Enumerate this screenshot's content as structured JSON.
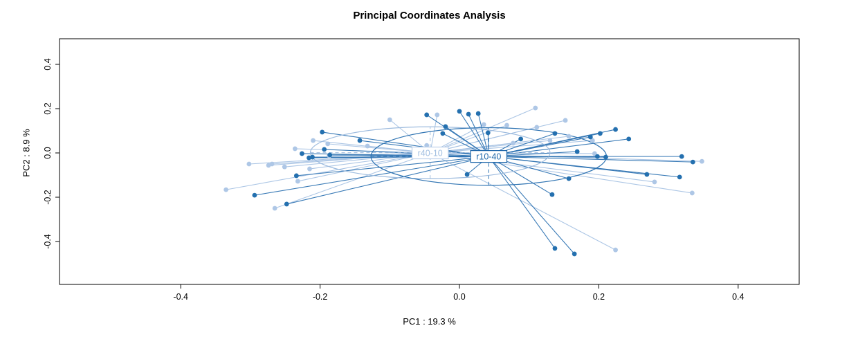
{
  "chart_data": {
    "type": "scatter",
    "title": "Principal Coordinates Analysis",
    "xlabel": "PC1 :  19.3 %",
    "ylabel": "PC2 :  8.9 %",
    "xlim": [
      -0.574,
      0.488
    ],
    "ylim": [
      -0.594,
      0.516
    ],
    "x_ticks": [
      -0.4,
      -0.2,
      0.0,
      0.2,
      0.4
    ],
    "x_tick_labels": [
      "-0.4",
      "-0.2",
      "0.0",
      "0.2",
      "0.4"
    ],
    "y_ticks": [
      -0.4,
      -0.2,
      0.0,
      0.2,
      0.4
    ],
    "y_tick_labels": [
      "-0.4",
      "-0.2",
      "0.0",
      "0.2",
      "0.4"
    ],
    "grid": false,
    "legend": "none",
    "plot_style": "ade4-s.class spider plot: lines from each group centroid to sample points, confidence ellipse with dashed principal axes, boxed group label at centroid",
    "groups": [
      {
        "name": "r40-10",
        "point_color": "#AEC7E6",
        "line_color": "#A8C3E4",
        "ellipse_color": "#9DBBDE",
        "label_text_color": "#A2BFE1",
        "label_border_color": "#BCD0EA",
        "centroid": [
          -0.042,
          0.0
        ],
        "ellipse": {
          "cx": -0.042,
          "cy": 0.001,
          "rx": 0.172,
          "ry": 0.117
        },
        "points": [
          [
            -0.21,
            0.056
          ],
          [
            -0.189,
            0.041
          ],
          [
            -0.187,
            -0.013
          ],
          [
            -0.236,
            0.019
          ],
          [
            -0.302,
            -0.05
          ],
          [
            -0.274,
            -0.056
          ],
          [
            -0.269,
            -0.05
          ],
          [
            -0.251,
            -0.063
          ],
          [
            -0.215,
            -0.072
          ],
          [
            -0.232,
            -0.128
          ],
          [
            -0.335,
            -0.166
          ],
          [
            -0.265,
            -0.25
          ],
          [
            -0.132,
            0.031
          ],
          [
            -0.1,
            0.15
          ],
          [
            -0.032,
            0.172
          ],
          [
            0.035,
            0.128
          ],
          [
            0.068,
            0.125
          ],
          [
            0.109,
            0.203
          ],
          [
            0.111,
            0.116
          ],
          [
            0.077,
            0.044
          ],
          [
            -0.047,
            0.034
          ],
          [
            0.152,
            0.147
          ],
          [
            0.157,
            0.075
          ],
          [
            0.13,
            0.056
          ],
          [
            0.191,
            0.056
          ],
          [
            0.194,
            -0.003
          ],
          [
            0.348,
            -0.038
          ],
          [
            0.28,
            -0.131
          ],
          [
            0.334,
            -0.181
          ],
          [
            0.224,
            -0.438
          ]
        ]
      },
      {
        "name": "r10-40",
        "point_color": "#2470AF",
        "line_color": "#2E73B2",
        "ellipse_color": "#2E73B2",
        "label_text_color": "#1E67A9",
        "label_border_color": "#1E66A8",
        "centroid": [
          0.042,
          -0.016
        ],
        "ellipse": {
          "cx": 0.042,
          "cy": -0.016,
          "rx": 0.169,
          "ry": 0.13
        },
        "points": [
          [
            -0.197,
            0.094
          ],
          [
            -0.143,
            0.056
          ],
          [
            -0.226,
            -0.003
          ],
          [
            -0.216,
            -0.022
          ],
          [
            -0.211,
            -0.019
          ],
          [
            -0.194,
            0.016
          ],
          [
            -0.186,
            -0.009
          ],
          [
            -0.234,
            -0.103
          ],
          [
            -0.294,
            -0.191
          ],
          [
            -0.248,
            -0.231
          ],
          [
            -0.047,
            0.172
          ],
          [
            0.0,
            0.188
          ],
          [
            0.013,
            0.175
          ],
          [
            0.027,
            0.178
          ],
          [
            -0.02,
            0.119
          ],
          [
            -0.024,
            0.088
          ],
          [
            0.041,
            0.091
          ],
          [
            0.088,
            0.063
          ],
          [
            0.011,
            -0.097
          ],
          [
            0.137,
            0.088
          ],
          [
            0.188,
            0.072
          ],
          [
            0.224,
            0.106
          ],
          [
            0.202,
            0.088
          ],
          [
            0.243,
            0.063
          ],
          [
            0.169,
            0.006
          ],
          [
            0.198,
            -0.016
          ],
          [
            0.21,
            -0.019
          ],
          [
            0.319,
            -0.016
          ],
          [
            0.335,
            -0.041
          ],
          [
            0.157,
            -0.116
          ],
          [
            0.133,
            -0.188
          ],
          [
            0.269,
            -0.097
          ],
          [
            0.316,
            -0.109
          ],
          [
            0.137,
            -0.431
          ],
          [
            0.165,
            -0.456
          ]
        ]
      }
    ]
  }
}
